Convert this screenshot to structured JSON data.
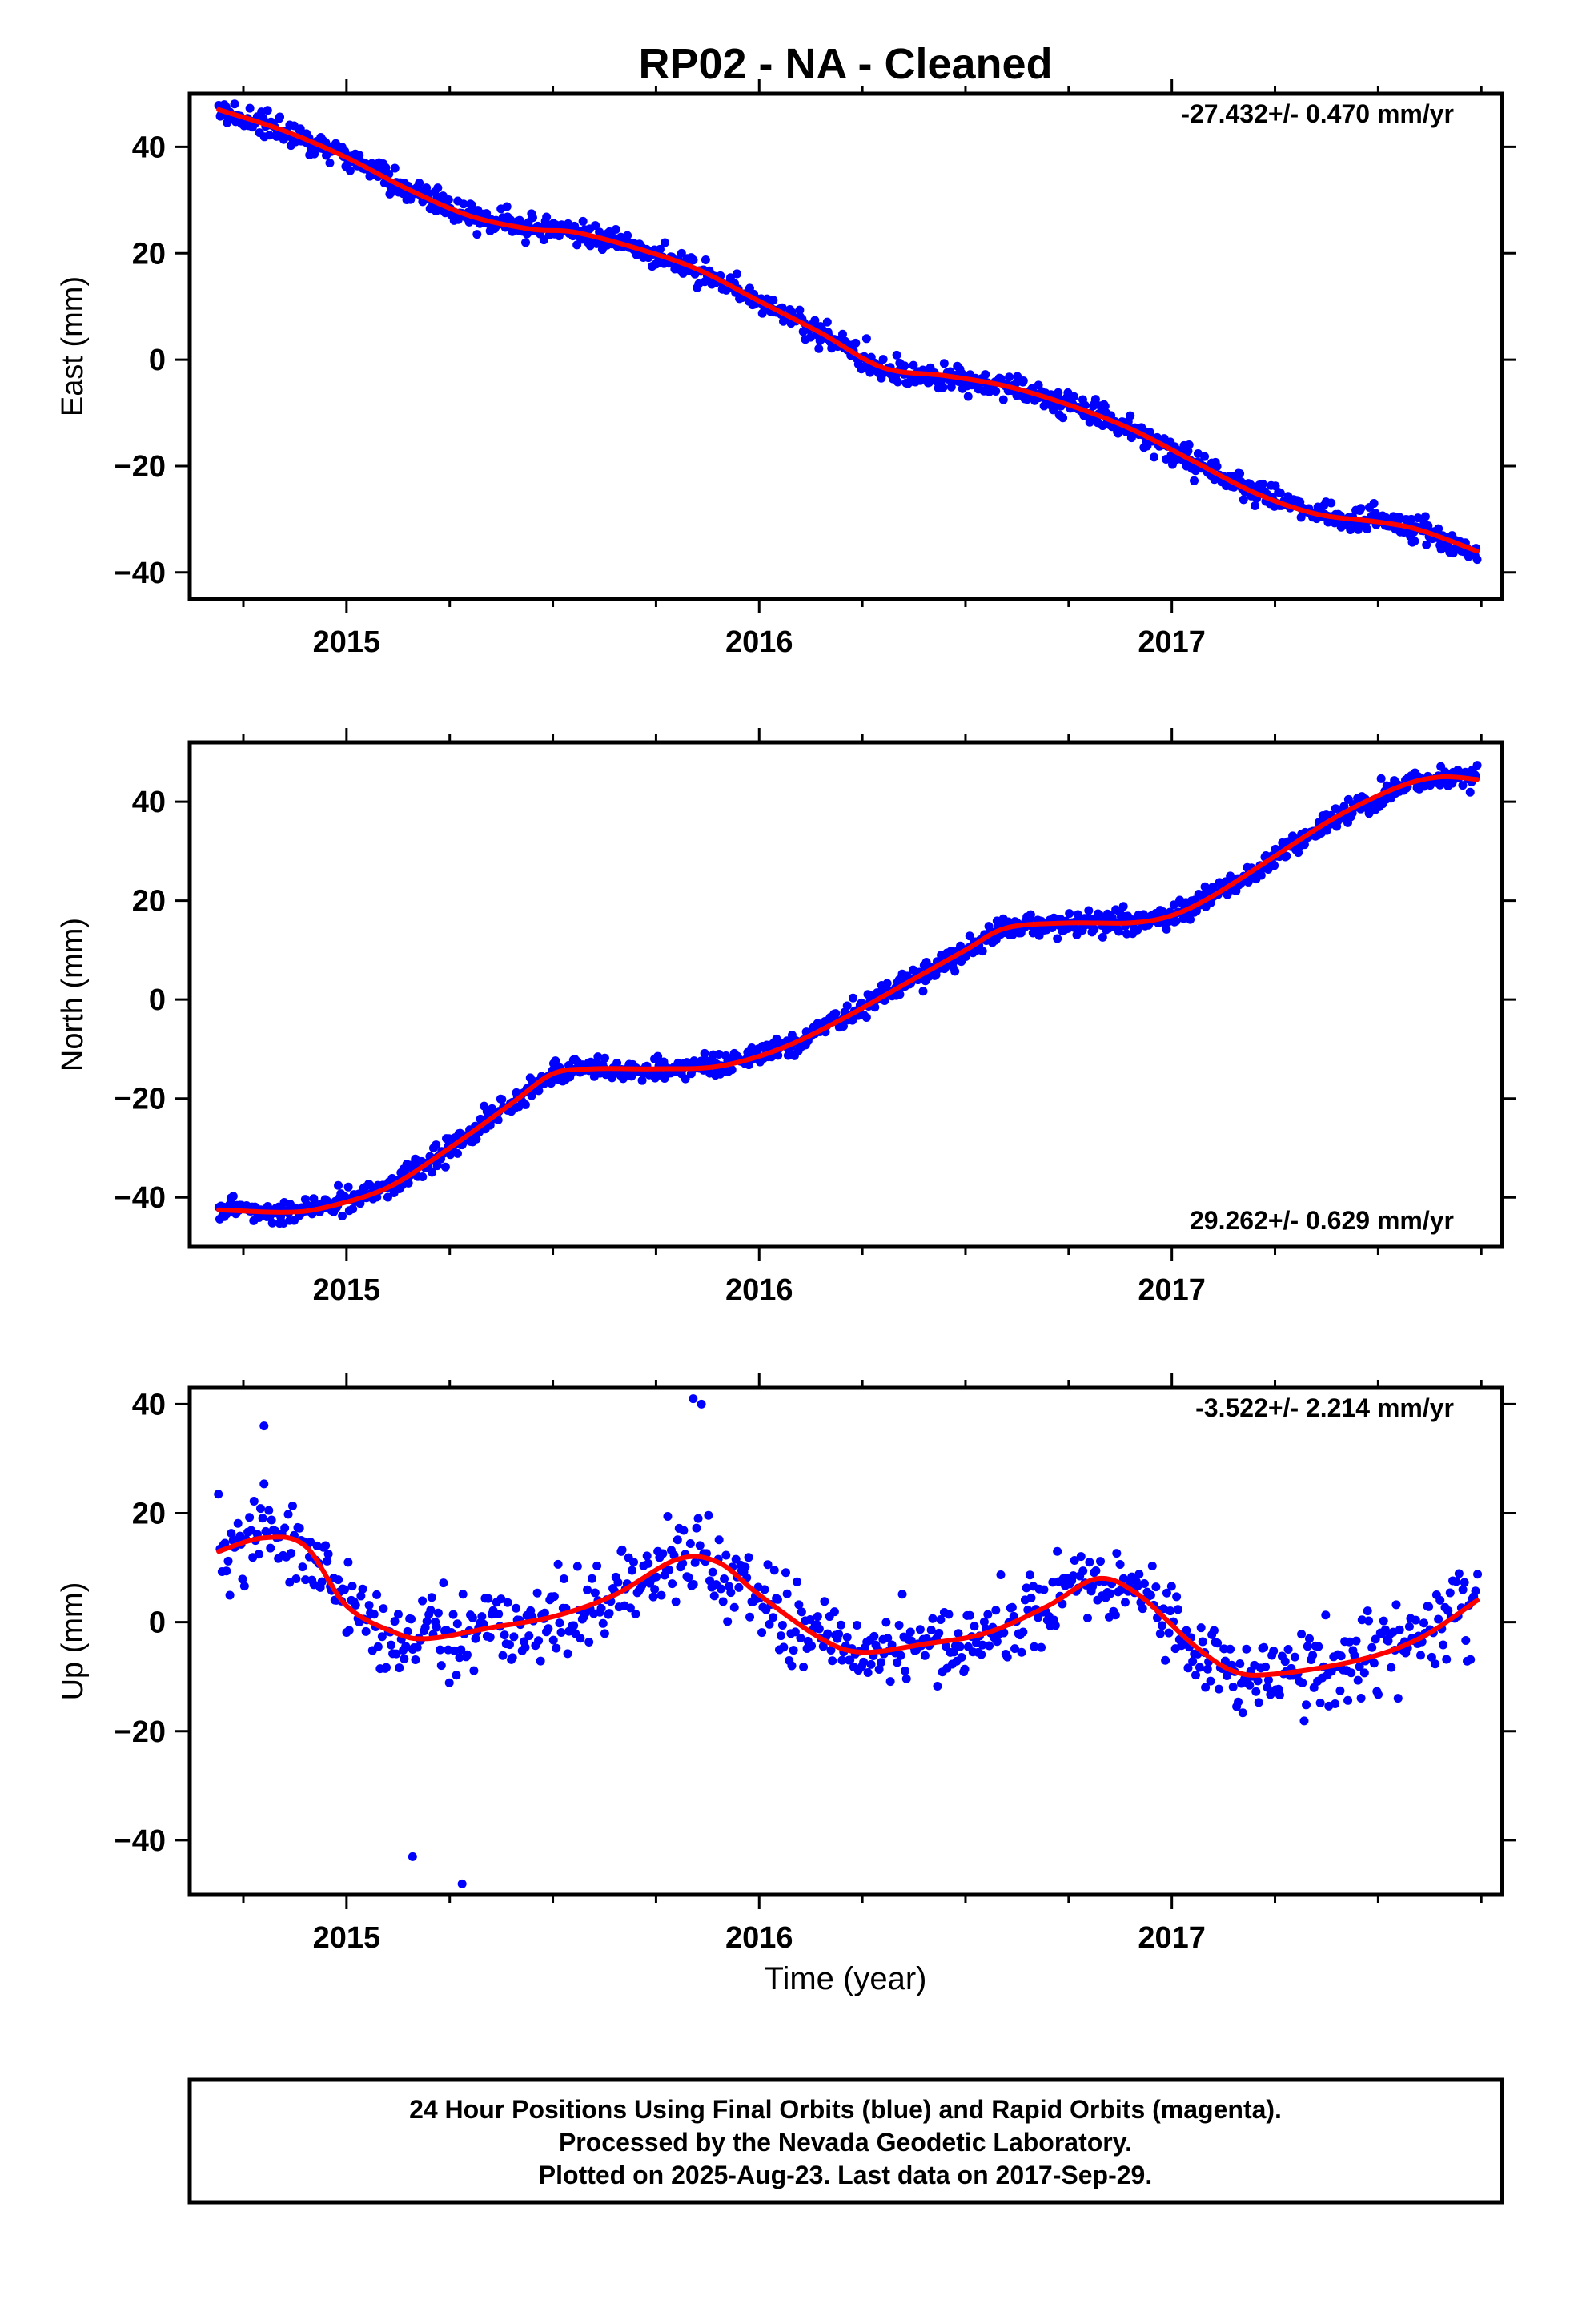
{
  "title": "RP02  - NA - Cleaned",
  "xlabel": "Time (year)",
  "caption": [
    "24 Hour Positions Using Final Orbits (blue) and Rapid Orbits (magenta).",
    "Processed by the Nevada Geodetic Laboratory.",
    "Plotted on 2025-Aug-23. Last data on 2017-Sep-29."
  ],
  "colors": {
    "points": "#0000ff",
    "fit": "#ff0000",
    "frame": "#000000"
  },
  "chart_data": [
    {
      "type": "scatter",
      "ylabel": "East (mm)",
      "rate_label": "-27.432+/- 0.470 mm/yr",
      "rate_position": "top-right",
      "xlim": [
        2014.62,
        2017.8
      ],
      "ylim": [
        -45,
        50
      ],
      "x_ticks": [
        2015,
        2016,
        2017
      ],
      "x_tick_labels": [
        "2015",
        "2016",
        "2017"
      ],
      "y_ticks": [
        -40,
        -20,
        0,
        20,
        40
      ],
      "y_tick_labels": [
        "−40",
        "−20",
        "0",
        "20",
        "40"
      ],
      "data_range": [
        2014.69,
        2017.74
      ],
      "series": [
        {
          "style": "points",
          "trend": [
            [
              2014.69,
              47
            ],
            [
              2014.85,
              43
            ],
            [
              2015.0,
              38
            ],
            [
              2015.15,
              32
            ],
            [
              2015.3,
              27
            ],
            [
              2015.45,
              24.5
            ],
            [
              2015.55,
              24
            ],
            [
              2015.7,
              21
            ],
            [
              2015.85,
              17
            ],
            [
              2016.0,
              11
            ],
            [
              2016.15,
              5
            ],
            [
              2016.3,
              -2
            ],
            [
              2016.45,
              -3.5
            ],
            [
              2016.6,
              -5
            ],
            [
              2016.75,
              -8.5
            ],
            [
              2016.9,
              -13
            ],
            [
              2017.05,
              -19
            ],
            [
              2017.2,
              -25
            ],
            [
              2017.35,
              -29
            ],
            [
              2017.5,
              -30.5
            ],
            [
              2017.6,
              -32
            ],
            [
              2017.74,
              -36.5
            ]
          ],
          "scatter_sd": 2.0
        },
        {
          "style": "fit_line",
          "points": [
            [
              2014.69,
              47
            ],
            [
              2014.85,
              43
            ],
            [
              2015.0,
              38
            ],
            [
              2015.15,
              32
            ],
            [
              2015.3,
              27
            ],
            [
              2015.45,
              24.5
            ],
            [
              2015.55,
              24
            ],
            [
              2015.7,
              21
            ],
            [
              2015.85,
              17
            ],
            [
              2016.0,
              11
            ],
            [
              2016.15,
              5
            ],
            [
              2016.3,
              -1.5
            ],
            [
              2016.45,
              -3
            ],
            [
              2016.6,
              -5
            ],
            [
              2016.75,
              -8.5
            ],
            [
              2016.9,
              -13
            ],
            [
              2017.05,
              -19
            ],
            [
              2017.2,
              -25
            ],
            [
              2017.35,
              -29
            ],
            [
              2017.5,
              -30.5
            ],
            [
              2017.6,
              -32
            ],
            [
              2017.74,
              -36
            ]
          ]
        }
      ]
    },
    {
      "type": "scatter",
      "ylabel": "North (mm)",
      "rate_label": "29.262+/- 0.629 mm/yr",
      "rate_position": "bottom-right",
      "xlim": [
        2014.62,
        2017.8
      ],
      "ylim": [
        -50,
        52
      ],
      "x_ticks": [
        2015,
        2016,
        2017
      ],
      "x_tick_labels": [
        "2015",
        "2016",
        "2017"
      ],
      "y_ticks": [
        -40,
        -20,
        0,
        20,
        40
      ],
      "y_tick_labels": [
        "−40",
        "−20",
        "0",
        "20",
        "40"
      ],
      "data_range": [
        2014.69,
        2017.74
      ],
      "series": [
        {
          "style": "points",
          "trend": [
            [
              2014.69,
              -42
            ],
            [
              2014.85,
              -43
            ],
            [
              2014.95,
              -42
            ],
            [
              2015.1,
              -38
            ],
            [
              2015.25,
              -30
            ],
            [
              2015.4,
              -21
            ],
            [
              2015.5,
              -15
            ],
            [
              2015.6,
              -14
            ],
            [
              2015.75,
              -14
            ],
            [
              2015.9,
              -13.5
            ],
            [
              2016.05,
              -10
            ],
            [
              2016.2,
              -4
            ],
            [
              2016.35,
              3
            ],
            [
              2016.5,
              10
            ],
            [
              2016.6,
              14.5
            ],
            [
              2016.75,
              15.5
            ],
            [
              2016.9,
              15.5
            ],
            [
              2017.0,
              17
            ],
            [
              2017.1,
              21
            ],
            [
              2017.25,
              29
            ],
            [
              2017.4,
              37
            ],
            [
              2017.55,
              43
            ],
            [
              2017.65,
              45
            ],
            [
              2017.74,
              44.5
            ]
          ],
          "scatter_sd": 2.0
        },
        {
          "style": "fit_line",
          "points": [
            [
              2014.69,
              -42.5
            ],
            [
              2014.85,
              -43
            ],
            [
              2014.95,
              -42
            ],
            [
              2015.1,
              -38
            ],
            [
              2015.25,
              -30
            ],
            [
              2015.4,
              -21
            ],
            [
              2015.5,
              -15
            ],
            [
              2015.6,
              -14
            ],
            [
              2015.75,
              -14
            ],
            [
              2015.9,
              -13.5
            ],
            [
              2016.05,
              -10
            ],
            [
              2016.2,
              -4
            ],
            [
              2016.35,
              3
            ],
            [
              2016.5,
              10
            ],
            [
              2016.6,
              14.5
            ],
            [
              2016.75,
              15.5
            ],
            [
              2016.9,
              15.5
            ],
            [
              2017.0,
              17
            ],
            [
              2017.1,
              21
            ],
            [
              2017.25,
              29
            ],
            [
              2017.4,
              37
            ],
            [
              2017.55,
              43
            ],
            [
              2017.65,
              45
            ],
            [
              2017.74,
              44.5
            ]
          ]
        }
      ]
    },
    {
      "type": "scatter",
      "ylabel": "Up (mm)",
      "rate_label": "-3.522+/- 2.214 mm/yr",
      "rate_position": "top-right",
      "xlim": [
        2014.62,
        2017.8
      ],
      "ylim": [
        -50,
        43
      ],
      "x_ticks": [
        2015,
        2016,
        2017
      ],
      "x_tick_labels": [
        "2015",
        "2016",
        "2017"
      ],
      "y_ticks": [
        -40,
        -20,
        0,
        20,
        40
      ],
      "y_tick_labels": [
        "−40",
        "−20",
        "0",
        "20",
        "40"
      ],
      "data_range": [
        2014.69,
        2017.74
      ],
      "series": [
        {
          "style": "points",
          "trend": [
            [
              2014.69,
              13
            ],
            [
              2014.8,
              16
            ],
            [
              2014.9,
              14
            ],
            [
              2015.0,
              3
            ],
            [
              2015.12,
              -2.5
            ],
            [
              2015.2,
              -3
            ],
            [
              2015.35,
              -1
            ],
            [
              2015.5,
              1
            ],
            [
              2015.65,
              5
            ],
            [
              2015.8,
              11.5
            ],
            [
              2015.9,
              11
            ],
            [
              2016.0,
              5
            ],
            [
              2016.15,
              -3
            ],
            [
              2016.25,
              -5.5
            ],
            [
              2016.4,
              -4
            ],
            [
              2016.55,
              -2
            ],
            [
              2016.7,
              3
            ],
            [
              2016.82,
              8
            ],
            [
              2016.92,
              5
            ],
            [
              2017.05,
              -4
            ],
            [
              2017.15,
              -9
            ],
            [
              2017.25,
              -9.5
            ],
            [
              2017.45,
              -7
            ],
            [
              2017.6,
              -3
            ],
            [
              2017.74,
              4
            ]
          ],
          "scatter_sd": 6.5,
          "outliers": [
            [
              2015.16,
              -43
            ],
            [
              2015.28,
              -48
            ],
            [
              2015.84,
              41
            ],
            [
              2015.86,
              40
            ],
            [
              2014.8,
              36
            ]
          ]
        },
        {
          "style": "fit_line",
          "points": [
            [
              2014.69,
              13
            ],
            [
              2014.8,
              15.5
            ],
            [
              2014.9,
              14
            ],
            [
              2015.0,
              3
            ],
            [
              2015.12,
              -2
            ],
            [
              2015.2,
              -3
            ],
            [
              2015.35,
              -1
            ],
            [
              2015.5,
              1
            ],
            [
              2015.65,
              5
            ],
            [
              2015.8,
              11.5
            ],
            [
              2015.9,
              11
            ],
            [
              2016.0,
              5
            ],
            [
              2016.15,
              -3
            ],
            [
              2016.25,
              -5.5
            ],
            [
              2016.4,
              -4
            ],
            [
              2016.55,
              -2
            ],
            [
              2016.7,
              3
            ],
            [
              2016.82,
              8
            ],
            [
              2016.92,
              5
            ],
            [
              2017.05,
              -4
            ],
            [
              2017.15,
              -9
            ],
            [
              2017.25,
              -9.5
            ],
            [
              2017.45,
              -7
            ],
            [
              2017.6,
              -3
            ],
            [
              2017.74,
              4
            ]
          ]
        }
      ]
    }
  ]
}
